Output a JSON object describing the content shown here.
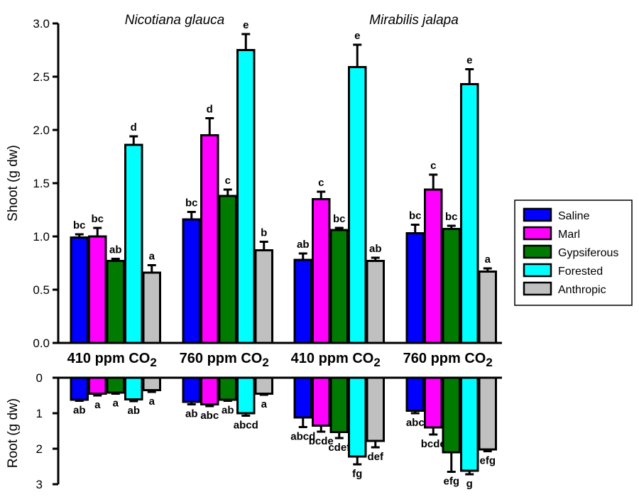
{
  "chart_data": [
    {
      "type": "bar",
      "panel": "shoot",
      "ylabel": "Shoot (g dw)",
      "ylim": [
        0,
        3.0
      ],
      "yticks": [
        "0.0",
        "0.5",
        "1.0",
        "1.5",
        "2.0",
        "2.5",
        "3.0"
      ],
      "species_titles": [
        "Nicotiana glauca",
        "Mirabilis jalapa"
      ],
      "categories": [
        "410 ppm CO2",
        "760 ppm CO2",
        "410 ppm CO2",
        "760 ppm CO2"
      ],
      "series": [
        {
          "name": "Saline",
          "color": "#0000ff",
          "values": [
            0.99,
            1.16,
            0.78,
            1.03
          ],
          "errors": [
            0.03,
            0.07,
            0.06,
            0.08
          ],
          "letters": [
            "bc",
            "bc",
            "ab",
            "bc"
          ]
        },
        {
          "name": "Marl",
          "color": "#ff00ff",
          "values": [
            1.0,
            1.95,
            1.35,
            1.44
          ],
          "errors": [
            0.08,
            0.16,
            0.07,
            0.14
          ],
          "letters": [
            "bc",
            "d",
            "c",
            "c"
          ]
        },
        {
          "name": "Gypsiferous",
          "color": "#007a00",
          "values": [
            0.77,
            1.38,
            1.06,
            1.07
          ],
          "errors": [
            0.02,
            0.06,
            0.02,
            0.03
          ],
          "letters": [
            "ab",
            "c",
            "bc",
            "bc"
          ]
        },
        {
          "name": "Forested",
          "color": "#00ffff",
          "values": [
            1.86,
            2.75,
            2.59,
            2.43
          ],
          "errors": [
            0.08,
            0.15,
            0.21,
            0.14
          ],
          "letters": [
            "d",
            "e",
            "e",
            "e"
          ]
        },
        {
          "name": "Anthropic",
          "color": "#c0c0c0",
          "values": [
            0.66,
            0.87,
            0.77,
            0.67
          ],
          "errors": [
            0.07,
            0.08,
            0.03,
            0.03
          ],
          "letters": [
            "a",
            "b",
            "ab",
            "a"
          ]
        }
      ],
      "legend": "right"
    },
    {
      "type": "bar",
      "panel": "root",
      "ylabel": "Root (g dw)",
      "ylim": [
        0,
        3
      ],
      "yticks": [
        "0",
        "1",
        "2",
        "3"
      ],
      "series": [
        {
          "name": "Saline",
          "values": [
            0.62,
            0.68,
            1.12,
            0.93
          ],
          "errors": [
            0.03,
            0.07,
            0.27,
            0.07
          ],
          "letters": [
            "ab",
            "ab",
            "abcd",
            "abc"
          ]
        },
        {
          "name": "Marl",
          "values": [
            0.45,
            0.75,
            1.35,
            1.4
          ],
          "errors": [
            0.05,
            0.05,
            0.17,
            0.2
          ],
          "letters": [
            "a",
            "abc",
            "bcde",
            "bcde"
          ]
        },
        {
          "name": "Gypsiferous",
          "values": [
            0.42,
            0.62,
            1.53,
            2.1
          ],
          "errors": [
            0.03,
            0.03,
            0.17,
            0.55
          ],
          "letters": [
            "a",
            "ab",
            "cdef",
            "efg"
          ]
        },
        {
          "name": "Forested",
          "values": [
            0.61,
            1.0,
            2.22,
            2.62
          ],
          "errors": [
            0.05,
            0.07,
            0.22,
            0.1
          ],
          "letters": [
            "ab",
            "abcd",
            "fg",
            "g"
          ]
        },
        {
          "name": "Anthropic",
          "values": [
            0.35,
            0.45,
            1.78,
            2.02
          ],
          "errors": [
            0.05,
            0.03,
            0.18,
            0.05
          ],
          "letters": [
            "a",
            "a",
            "def",
            "efg"
          ]
        }
      ]
    }
  ]
}
